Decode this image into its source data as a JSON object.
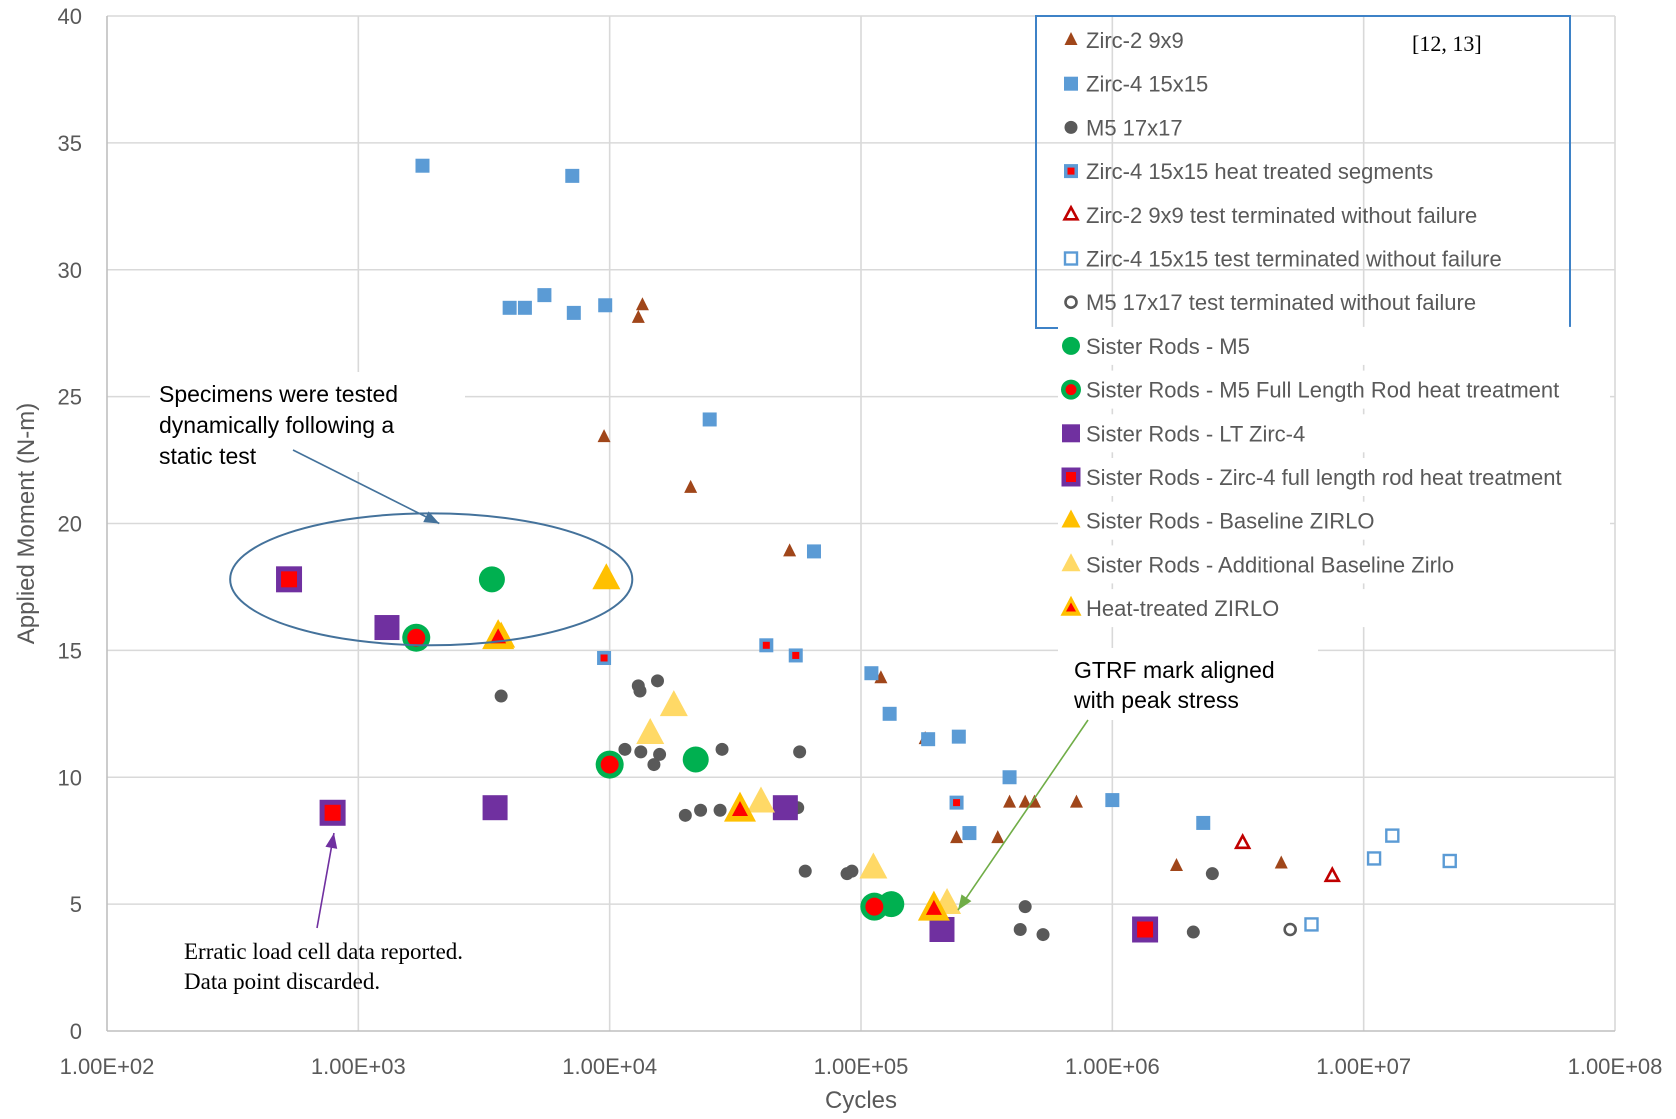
{
  "chart_data": {
    "type": "scatter",
    "xlabel": "Cycles",
    "ylabel": "Applied Moment (N-m)",
    "x_scale": "log",
    "xlim": [
      100,
      100000000
    ],
    "ylim": [
      0,
      40
    ],
    "x_ticks": [
      100,
      1000,
      10000,
      100000,
      1000000,
      10000000,
      100000000
    ],
    "x_tick_labels": [
      "1.00E+02",
      "1.00E+03",
      "1.00E+04",
      "1.00E+05",
      "1.00E+06",
      "1.00E+07",
      "1.00E+08"
    ],
    "y_ticks": [
      0,
      5,
      10,
      15,
      20,
      25,
      30,
      35,
      40
    ],
    "y_tick_labels": [
      "0",
      "5",
      "10",
      "15",
      "20",
      "25",
      "30",
      "35",
      "40"
    ],
    "grid": true,
    "legend_position": "top-right",
    "legend_reference": "[12, 13]",
    "series": [
      {
        "name": "Zirc-2 9x9",
        "marker": "triangle",
        "color": "#a0461a",
        "points": [
          [
            13500,
            28.6
          ],
          [
            13000,
            28.1
          ],
          [
            9500,
            23.4
          ],
          [
            21000,
            21.4
          ],
          [
            52000,
            18.9
          ],
          [
            120000,
            13.9
          ],
          [
            180000,
            11.5
          ],
          [
            240000,
            7.6
          ],
          [
            390000,
            9.0
          ],
          [
            450000,
            9.0
          ],
          [
            490000,
            9.0
          ],
          [
            350000,
            7.6
          ],
          [
            720000,
            9.0
          ],
          [
            1800000,
            6.5
          ],
          [
            4700000,
            6.6
          ]
        ]
      },
      {
        "name": "Zirc-4 15x15",
        "marker": "square",
        "color": "#5b9bd5",
        "points": [
          [
            1800,
            34.1
          ],
          [
            7100,
            33.7
          ],
          [
            4000,
            28.5
          ],
          [
            4600,
            28.5
          ],
          [
            5500,
            29.0
          ],
          [
            7200,
            28.3
          ],
          [
            9600,
            28.6
          ],
          [
            25000,
            24.1
          ],
          [
            65000,
            18.9
          ],
          [
            110000,
            14.1
          ],
          [
            130000,
            12.5
          ],
          [
            185000,
            11.5
          ],
          [
            245000,
            11.6
          ],
          [
            270000,
            7.8
          ],
          [
            390000,
            10.0
          ],
          [
            1000000,
            9.1
          ],
          [
            2300000,
            8.2
          ]
        ]
      },
      {
        "name": "M5 17x17",
        "marker": "circle",
        "color": "#595959",
        "points": [
          [
            3700,
            13.2
          ],
          [
            13200,
            13.4
          ],
          [
            13000,
            13.6
          ],
          [
            15500,
            13.8
          ],
          [
            11500,
            11.1
          ],
          [
            13300,
            11.0
          ],
          [
            15800,
            10.9
          ],
          [
            15000,
            10.5
          ],
          [
            28000,
            11.1
          ],
          [
            57000,
            11.0
          ],
          [
            20000,
            8.5
          ],
          [
            23000,
            8.7
          ],
          [
            27500,
            8.7
          ],
          [
            56000,
            8.8
          ],
          [
            60000,
            6.3
          ],
          [
            88000,
            6.2
          ],
          [
            92000,
            6.3
          ],
          [
            450000,
            4.9
          ],
          [
            430000,
            4.0
          ],
          [
            530000,
            3.8
          ],
          [
            2100000,
            3.9
          ],
          [
            2500000,
            6.2
          ]
        ]
      },
      {
        "name": "Zirc-4 15x15 heat treated segments",
        "marker": "square-dot",
        "color": "#5b9bd5",
        "points": [
          [
            9500,
            14.7
          ],
          [
            42000,
            15.2
          ],
          [
            55000,
            14.8
          ],
          [
            240000,
            9.0
          ]
        ]
      },
      {
        "name": "Zirc-2 9x9 test terminated without failure",
        "marker": "triangle-open",
        "color": "#c00000",
        "points": [
          [
            3300000,
            7.4
          ],
          [
            7500000,
            6.1
          ]
        ]
      },
      {
        "name": "Zirc-4 15x15 test terminated without failure",
        "marker": "square-open",
        "color": "#5b9bd5",
        "points": [
          [
            6200000,
            4.2
          ],
          [
            11000000,
            6.8
          ],
          [
            13000000,
            7.7
          ],
          [
            22000000,
            6.7
          ]
        ]
      },
      {
        "name": "M5 17x17 test terminated without failure",
        "marker": "circle-open",
        "color": "#595959",
        "points": [
          [
            5100000,
            4.0
          ]
        ]
      },
      {
        "name": "Sister Rods - M5",
        "marker": "circle-large",
        "color": "#00b050",
        "points": [
          [
            3400,
            17.8
          ],
          [
            22000,
            10.7
          ],
          [
            132000,
            5.0
          ]
        ]
      },
      {
        "name": "Sister Rods - M5 Full Length Rod heat treatment",
        "marker": "circle-large-dot",
        "color": "#00b050",
        "points": [
          [
            1700,
            15.5
          ],
          [
            10000,
            10.5
          ],
          [
            113000,
            4.9
          ]
        ]
      },
      {
        "name": "Sister Rods - LT Zirc-4",
        "marker": "square-large",
        "color": "#7030a0",
        "points": [
          [
            1300,
            15.9
          ],
          [
            3500,
            8.8
          ],
          [
            50000,
            8.8
          ],
          [
            210000,
            4.0
          ]
        ]
      },
      {
        "name": "Sister Rods - Zirc-4 full length rod heat treatment",
        "marker": "square-large-dot",
        "color": "#7030a0",
        "points": [
          [
            530,
            17.8
          ],
          [
            790,
            8.6
          ],
          [
            1350000,
            4.0
          ]
        ]
      },
      {
        "name": "Sister Rods - Baseline ZIRLO",
        "marker": "triangle-large",
        "color": "#ffc000",
        "points": [
          [
            9700,
            17.8
          ],
          [
            3700,
            15.5
          ]
        ]
      },
      {
        "name": "Sister Rods - Additional Baseline Zirlo",
        "marker": "triangle-large",
        "color": "#ffd966",
        "points": [
          [
            18000,
            12.8
          ],
          [
            14500,
            11.7
          ],
          [
            40000,
            9.0
          ],
          [
            112000,
            6.4
          ],
          [
            220000,
            5.0
          ]
        ]
      },
      {
        "name": "Heat-treated ZIRLO",
        "marker": "triangle-large-dot",
        "color": "#ffc000",
        "points": [
          [
            3600,
            15.5
          ],
          [
            33000,
            8.7
          ],
          [
            195000,
            4.8
          ]
        ]
      }
    ],
    "annotations": [
      {
        "id": "specimens",
        "text_lines": [
          "Specimens were tested",
          "dynamically following a",
          "static test"
        ],
        "target": [
          2100,
          20.0
        ],
        "arrow_color": "#44729b"
      },
      {
        "id": "gtrf",
        "text_lines": [
          "GTRF mark aligned",
          "with peak stress"
        ],
        "target": [
          210000,
          5.0
        ],
        "arrow_color": "#70ad47"
      },
      {
        "id": "erratic",
        "text_lines": [
          "Erratic load cell data reported.",
          "Data point discarded."
        ],
        "target": [
          800,
          7.8
        ],
        "arrow_color": "#7030a0"
      }
    ],
    "ellipse": {
      "center": [
        1950,
        17.8
      ],
      "rx_decades": 0.8,
      "ry_data": 2.6,
      "color": "#44729b"
    }
  }
}
